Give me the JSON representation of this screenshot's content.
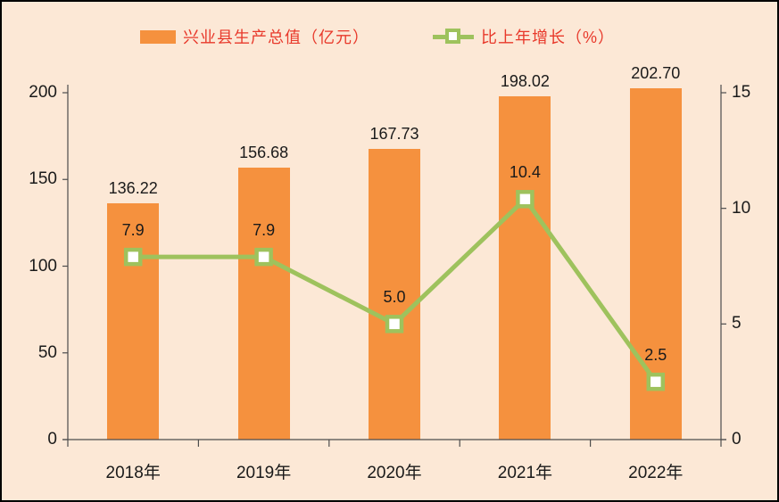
{
  "chart_data": {
    "type": "bar",
    "subtype": "bar-line-combo",
    "categories": [
      "2018年",
      "2019年",
      "2020年",
      "2021年",
      "2022年"
    ],
    "series": [
      {
        "name": "兴业县生产总值（亿元）",
        "type": "bar",
        "axis": "left",
        "values": [
          136.22,
          156.68,
          167.73,
          198.02,
          202.7
        ],
        "labels": [
          "136.22",
          "156.68",
          "167.73",
          "198.02",
          "202.70"
        ],
        "color": "#F5913E"
      },
      {
        "name": "比上年增长（%）",
        "type": "line",
        "axis": "right",
        "marker": "hollow-square",
        "values": [
          7.9,
          7.9,
          5.0,
          10.4,
          2.5
        ],
        "labels": [
          "7.9",
          "7.9",
          "5.0",
          "10.4",
          "2.5"
        ],
        "color": "#9EC25D"
      }
    ],
    "left_axis": {
      "min": 0,
      "max": 200,
      "ticks": [
        0,
        50,
        100,
        150,
        200
      ],
      "tick_labels": [
        "0",
        "50",
        "100",
        "150",
        "200"
      ]
    },
    "right_axis": {
      "min": 0,
      "max": 15,
      "ticks": [
        0,
        5,
        10,
        15
      ],
      "tick_labels": [
        "0",
        "5",
        "10",
        "15"
      ]
    },
    "title": "",
    "xlabel": "",
    "ylabel": "",
    "legend_position": "top",
    "grid": false
  },
  "legend": {
    "items": [
      {
        "label": "兴业县生产总值（亿元）",
        "swatch": "bar",
        "color": "#F5913E"
      },
      {
        "label": "比上年增长（%）",
        "swatch": "line-square",
        "color": "#9EC25D"
      }
    ]
  },
  "colors": {
    "background": "#FCE8D6",
    "border": "#000000",
    "bar": "#F5913E",
    "line": "#9EC25D",
    "marker_fill": "#FFFFFF",
    "legend_text": "#E8392B",
    "axis_line": "#4D4D4D",
    "text": "#1A1A1A"
  }
}
